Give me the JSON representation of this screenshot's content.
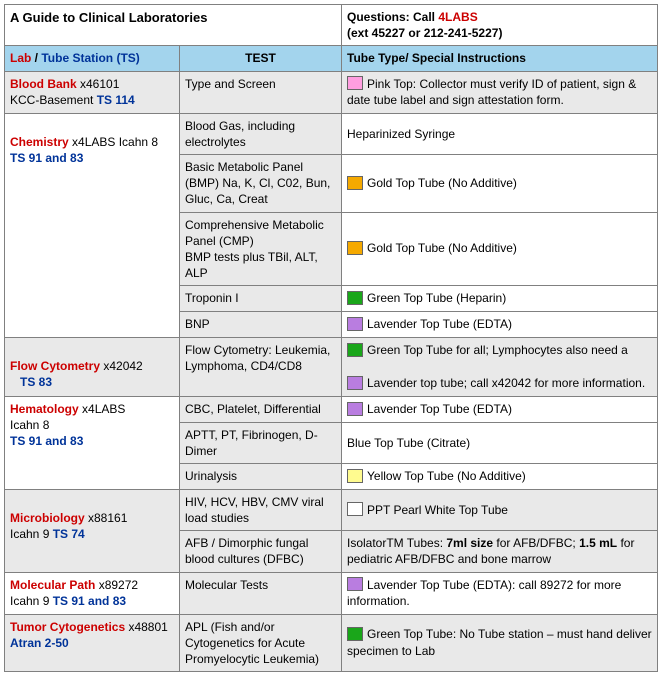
{
  "title": "A Guide to Clinical Laboratories",
  "questions_prefix": "Questions: Call ",
  "questions_brand": "4LABS",
  "questions_ext": "(ext 45227 or 212-241-5227)",
  "colhead": {
    "lab": "Lab",
    "sep": " / ",
    "ts": "Tube Station (TS)",
    "test": "TEST",
    "tube": "Tube Type/ Special Instructions"
  },
  "colors": {
    "pink": "#ff9ee0",
    "gold": "#f5a900",
    "green": "#1aa61a",
    "lavender": "#b97de0",
    "blue_txt": "#003399",
    "yellow": "#fffb8f",
    "white": "#ffffff"
  },
  "rows": {
    "bloodbank": {
      "lab": "Blood Bank",
      "ext": "  x46101",
      "loc": "KCC-Basement   ",
      "ts": "TS 114",
      "test": "Type and Screen",
      "instr": "Pink Top: Collector must verify ID of patient, sign & date tube label and sign attestation form."
    },
    "chemistry": {
      "lab": "Chemistry",
      "ext": " x4LABS Icahn 8",
      "ts": "TS 91 and 83",
      "r1": {
        "test": "Blood Gas, including electrolytes",
        "instr": "Heparinized Syringe"
      },
      "r2": {
        "test": "Basic Metabolic Panel (BMP) Na, K, Cl, C02, Bun, Gluc, Ca, Creat",
        "instr": "Gold Top Tube (No Additive)"
      },
      "r3": {
        "test": "Comprehensive Metabolic Panel (CMP)\nBMP tests plus TBil, ALT, ALP",
        "instr": "Gold Top Tube (No Additive)"
      },
      "r4": {
        "test": "Troponin I",
        "instr": "Green Top Tube (Heparin)"
      },
      "r5": {
        "test": "BNP",
        "instr": "Lavender Top Tube (EDTA)"
      }
    },
    "flow": {
      "lab": "Flow Cytometry",
      "ext": "  x42042",
      "ts": "TS 83",
      "test": "Flow Cytometry: Leukemia, Lymphoma, CD4/CD8",
      "instr1": "Green Top Tube for all; Lymphocytes also need a",
      "instr2": "Lavender top tube; call x42042 for more information."
    },
    "hematology": {
      "lab": "Hematology",
      "ext": "  x4LABS",
      "loc": "Icahn 8",
      "ts": "TS 91 and 83",
      "r1": {
        "test": "CBC, Platelet, Differential",
        "instr": "Lavender Top Tube  (EDTA)"
      },
      "r2": {
        "test": "APTT, PT, Fibrinogen, D-Dimer",
        "instr": "Blue Top Tube (Citrate)"
      },
      "r3": {
        "test": "Urinalysis",
        "instr": "Yellow Top Tube (No Additive)"
      }
    },
    "micro": {
      "lab": "Microbiology",
      "ext": "  x88161",
      "loc": "Icahn 9 ",
      "ts": "TS 74",
      "r1": {
        "test": "HIV, HCV, HBV, CMV viral load studies",
        "instr": "PPT Pearl White Top Tube"
      },
      "r2": {
        "test": "AFB / Dimorphic fungal blood cultures (DFBC)",
        "pre": "IsolatorTM Tubes: ",
        "b1": "7ml size",
        "mid": " for AFB/DFBC; ",
        "b2": "1.5 mL",
        "post": " for pediatric AFB/DFBC and bone marrow"
      }
    },
    "molpath": {
      "lab": "Molecular Path",
      "ext": "  x89272",
      "loc": "Icahn 9  ",
      "ts": "TS 91 and 83",
      "test": "Molecular Tests",
      "instr": "Lavender Top Tube (EDTA): call 89272 for more information."
    },
    "tumor": {
      "lab": "Tumor Cytogenetics",
      "ext": "  x48801 ",
      "loc": "Atran 2-50",
      "test": "APL (Fish and/or Cytogenetics for Acute Promyelocytic Leukemia)",
      "instr": "Green Top Tube: No Tube station – must hand deliver specimen to Lab"
    }
  }
}
